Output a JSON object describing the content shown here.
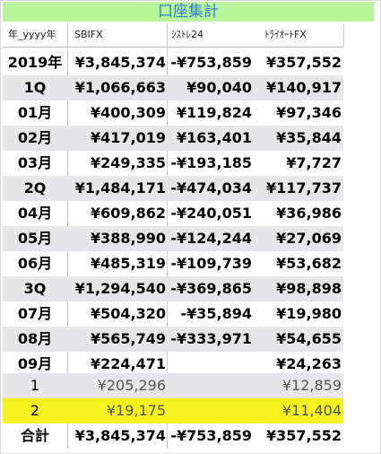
{
  "title": "口座集計",
  "headers": {
    "col0": "年_yyyy年",
    "col1": "SBIFX",
    "col2": "ｼｽﾄﾚ24",
    "col3": "ﾄﾗｲｵｰﾄFX"
  },
  "rows": [
    {
      "label": "2019年",
      "v1": "¥3,845,374",
      "v2": "-¥753,859",
      "v3": "¥357,552"
    },
    {
      "label": "1Q",
      "v1": "¥1,066,663",
      "v2": "¥90,040",
      "v3": "¥140,917"
    },
    {
      "label": "01月",
      "v1": "¥400,309",
      "v2": "¥119,824",
      "v3": "¥97,346"
    },
    {
      "label": "02月",
      "v1": "¥417,019",
      "v2": "¥163,401",
      "v3": "¥35,844"
    },
    {
      "label": "03月",
      "v1": "¥249,335",
      "v2": "-¥193,185",
      "v3": "¥7,727"
    },
    {
      "label": "2Q",
      "v1": "¥1,484,171",
      "v2": "-¥474,034",
      "v3": "¥117,737"
    },
    {
      "label": "04月",
      "v1": "¥609,862",
      "v2": "-¥240,051",
      "v3": "¥36,986"
    },
    {
      "label": "05月",
      "v1": "¥388,990",
      "v2": "-¥124,244",
      "v3": "¥27,069"
    },
    {
      "label": "06月",
      "v1": "¥485,319",
      "v2": "-¥109,739",
      "v3": "¥53,682"
    },
    {
      "label": "3Q",
      "v1": "¥1,294,540",
      "v2": "-¥369,865",
      "v3": "¥98,898"
    },
    {
      "label": "07月",
      "v1": "¥504,320",
      "v2": "-¥35,894",
      "v3": "¥19,980"
    },
    {
      "label": "08月",
      "v1": "¥565,749",
      "v2": "-¥333,971",
      "v3": "¥54,655"
    },
    {
      "label": "09月",
      "v1": "¥224,471",
      "v2": "",
      "v3": "¥24,263"
    },
    {
      "label": "1",
      "v1": "¥205,296",
      "v2": "",
      "v3": "¥12,859"
    },
    {
      "label": "2",
      "v1": "¥19,175",
      "v2": "",
      "v3": "¥11,404"
    },
    {
      "label": "合計",
      "v1": "¥3,845,374",
      "v2": "-¥753,859",
      "v3": "¥357,552"
    }
  ],
  "colors": {
    "title_bg": "#b8f59a",
    "title_text": "#2f7fd0",
    "row_alt": "#e7e7e9",
    "highlight": "#f6f21d"
  }
}
